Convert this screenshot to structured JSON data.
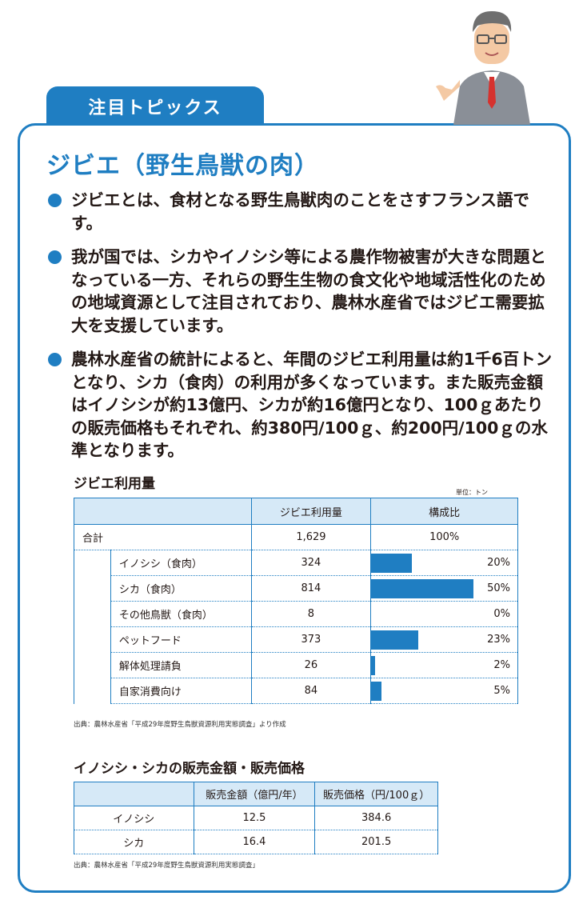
{
  "tab_label": "注目トピックス",
  "heading": "ジビエ（野生鳥獣の肉）",
  "bullets": [
    "ジビエとは、食材となる野生鳥獣肉のことをさすフランス語です。",
    "我が国では、シカやイノシシ等による農作物被害が大きな問題となっている一方、それらの野生生物の食文化や地域活性化のための地域資源として注目されており、農林水産省ではジビエ需要拡大を支援しています。",
    "農林水産省の統計によると、年間のジビエ利用量は約1千6百トンとなり、シカ（食肉）の利用が多くなっています。また販売金額はイノシシが約13億円、シカが約16億円となり、100ｇあたりの販売価格もそれぞれ、約380円/100ｇ、約200円/100ｇの水準となります。"
  ],
  "table1": {
    "title": "ジビエ利用量",
    "unit": "単位：トン",
    "col_usage": "ジビエ利用量",
    "col_ratio": "構成比",
    "total": {
      "label": "合計",
      "value": "1,629",
      "pct": "100%"
    },
    "rows": [
      {
        "name": "イノシシ（食肉）",
        "value": "324",
        "pct": "20%",
        "ratio": 20
      },
      {
        "name": "シカ（食肉）",
        "value": "814",
        "pct": "50%",
        "ratio": 50
      },
      {
        "name": "その他鳥獣（食肉）",
        "value": "8",
        "pct": "0%",
        "ratio": 0
      },
      {
        "name": "ペットフード",
        "value": "373",
        "pct": "23%",
        "ratio": 23
      },
      {
        "name": "解体処理請負",
        "value": "26",
        "pct": "2%",
        "ratio": 2
      },
      {
        "name": "自家消費向け",
        "value": "84",
        "pct": "5%",
        "ratio": 5
      }
    ],
    "source": "出典：農林水産省「平成29年度野生鳥獣資源利用実態調査」より作成"
  },
  "table2": {
    "title": "イノシシ・シカの販売金額・販売価格",
    "col_sales": "販売金額（億円/年）",
    "col_price": "販売価格（円/100ｇ）",
    "rows": [
      {
        "name": "イノシシ",
        "sales": "12.5",
        "price": "384.6"
      },
      {
        "name": "シカ",
        "sales": "16.4",
        "price": "201.5"
      }
    ],
    "source": "出典：農林水産省「平成29年度野生鳥獣資源利用実態調査」"
  },
  "colors": {
    "accent": "#1f7ec2",
    "header_fill": "#d6e9f7"
  }
}
